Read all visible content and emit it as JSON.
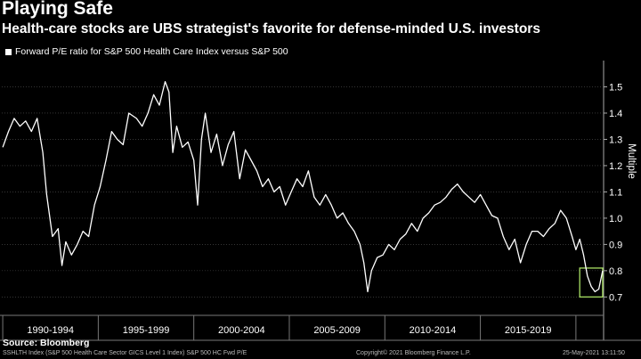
{
  "title": "Playing Safe",
  "subtitle": "Health-care stocks are UBS strategist's favorite for defense-minded U.S. investors",
  "chart_data": {
    "type": "line",
    "legend": "Forward P/E ratio for S&P 500 Health Care Index versus S&P 500",
    "ylabel": "Multiple",
    "ylim": [
      0.63,
      1.6
    ],
    "xlim": [
      1989.95,
      2021.45
    ],
    "yticks": [
      "0.7",
      "0.8",
      "0.9",
      "1.0",
      "1.1",
      "1.2",
      "1.3",
      "1.4",
      "1.5"
    ],
    "periods": [
      "1990-1994",
      "1995-1999",
      "2000-2004",
      "2005-2009",
      "2010-2014",
      "2015-2019"
    ],
    "series": [
      {
        "name": "Forward P/E ratio for S&P 500 Health Care Index versus S&P 500",
        "x": [
          1990.0,
          1990.3,
          1990.6,
          1990.9,
          1991.2,
          1991.5,
          1991.8,
          1992.1,
          1992.3,
          1992.6,
          1992.9,
          1993.1,
          1993.3,
          1993.6,
          1993.9,
          1994.2,
          1994.5,
          1994.8,
          1995.1,
          1995.4,
          1995.7,
          1996.0,
          1996.3,
          1996.6,
          1997.0,
          1997.3,
          1997.6,
          1997.9,
          1998.2,
          1998.5,
          1998.7,
          1998.9,
          1999.1,
          1999.4,
          1999.7,
          2000.0,
          2000.2,
          2000.4,
          2000.6,
          2000.9,
          2001.2,
          2001.5,
          2001.8,
          2002.1,
          2002.4,
          2002.7,
          2003.0,
          2003.3,
          2003.6,
          2003.9,
          2004.2,
          2004.5,
          2004.8,
          2005.1,
          2005.4,
          2005.7,
          2006.0,
          2006.3,
          2006.6,
          2006.9,
          2007.2,
          2007.5,
          2007.8,
          2008.1,
          2008.4,
          2008.7,
          2008.9,
          2009.1,
          2009.3,
          2009.6,
          2009.9,
          2010.2,
          2010.5,
          2010.8,
          2011.1,
          2011.4,
          2011.7,
          2012.0,
          2012.3,
          2012.6,
          2012.9,
          2013.2,
          2013.5,
          2013.8,
          2014.1,
          2014.4,
          2014.7,
          2015.0,
          2015.3,
          2015.6,
          2015.9,
          2016.2,
          2016.5,
          2016.8,
          2017.1,
          2017.4,
          2017.7,
          2018.0,
          2018.3,
          2018.6,
          2018.9,
          2019.2,
          2019.5,
          2019.8,
          2020.0,
          2020.2,
          2020.4,
          2020.6,
          2020.8,
          2021.0,
          2021.2,
          2021.4
        ],
        "values": [
          1.27,
          1.33,
          1.38,
          1.35,
          1.37,
          1.33,
          1.38,
          1.25,
          1.09,
          0.93,
          0.96,
          0.82,
          0.91,
          0.86,
          0.9,
          0.95,
          0.93,
          1.05,
          1.12,
          1.22,
          1.33,
          1.3,
          1.28,
          1.4,
          1.38,
          1.35,
          1.4,
          1.47,
          1.43,
          1.52,
          1.48,
          1.25,
          1.35,
          1.27,
          1.29,
          1.22,
          1.05,
          1.3,
          1.4,
          1.25,
          1.32,
          1.2,
          1.28,
          1.33,
          1.15,
          1.26,
          1.22,
          1.18,
          1.12,
          1.15,
          1.1,
          1.12,
          1.05,
          1.1,
          1.15,
          1.12,
          1.18,
          1.08,
          1.05,
          1.09,
          1.05,
          1.0,
          1.02,
          0.98,
          0.95,
          0.9,
          0.83,
          0.72,
          0.8,
          0.85,
          0.86,
          0.9,
          0.88,
          0.92,
          0.94,
          0.98,
          0.95,
          1.0,
          1.02,
          1.05,
          1.06,
          1.08,
          1.11,
          1.13,
          1.1,
          1.08,
          1.06,
          1.09,
          1.05,
          1.01,
          1.0,
          0.93,
          0.88,
          0.92,
          0.83,
          0.9,
          0.95,
          0.95,
          0.93,
          0.96,
          0.98,
          1.03,
          1.0,
          0.93,
          0.88,
          0.92,
          0.86,
          0.78,
          0.74,
          0.72,
          0.73,
          0.8
        ]
      }
    ],
    "highlight": {
      "x_start": 2020.2,
      "x_end": 2021.4,
      "y_start": 0.7,
      "y_end": 0.81,
      "color": "#a8e063"
    }
  },
  "source": "Source: Bloomberg",
  "footer": {
    "left": "SSHLTH Index (S&P 500 Health Care Sector GICS Level 1 Index) S&P 500 HC Fwd P/E",
    "center": "Copyright© 2021 Bloomberg Finance L.P.",
    "right": "25-May-2021 13:11:50"
  }
}
